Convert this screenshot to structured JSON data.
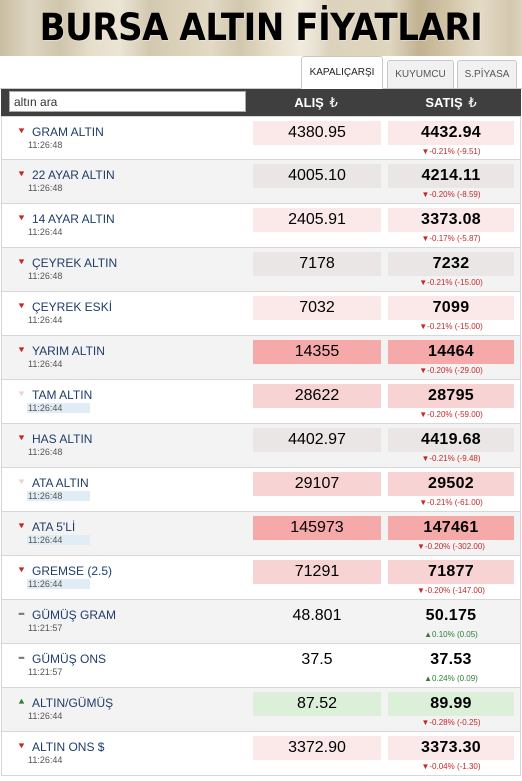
{
  "header": {
    "title": "BURSA ALTIN FİYATLARI"
  },
  "tabs": [
    {
      "label": "KAPALIÇARŞI",
      "active": true
    },
    {
      "label": "KUYUMCU",
      "active": false
    },
    {
      "label": "S.PİYASA",
      "active": false
    }
  ],
  "search": {
    "placeholder": "altın ara"
  },
  "columns": {
    "alis": "ALIŞ",
    "satis": "SATIŞ",
    "currency_symbol": "₺"
  },
  "colors": {
    "down": "#c62828",
    "up": "#2e7d32",
    "neutral": "#777777",
    "name": "#1e3d6b"
  },
  "rows": [
    {
      "name": "GRAM ALTIN",
      "time": "11:26:48",
      "alis": "4380.95",
      "satis": "4432.94",
      "change": "▼-0.21% (-9.51)",
      "trend": "down",
      "bg_alis": "light",
      "bg_satis": "light",
      "time_hl": false
    },
    {
      "name": "22 AYAR ALTIN",
      "time": "11:26:48",
      "alis": "4005.10",
      "satis": "4214.11",
      "change": "▼-0.20% (-8.59)",
      "trend": "down",
      "bg_alis": "grey",
      "bg_satis": "grey",
      "time_hl": false
    },
    {
      "name": "14 AYAR ALTIN",
      "time": "11:26:44",
      "alis": "2405.91",
      "satis": "3373.08",
      "change": "▼-0.17% (-5.87)",
      "trend": "down",
      "bg_alis": "light",
      "bg_satis": "light",
      "time_hl": false
    },
    {
      "name": "ÇEYREK ALTIN",
      "time": "11:26:48",
      "alis": "7178",
      "satis": "7232",
      "change": "▼-0.21% (-15.00)",
      "trend": "down",
      "bg_alis": "grey",
      "bg_satis": "grey",
      "time_hl": false
    },
    {
      "name": "ÇEYREK ESKİ",
      "time": "11:26:44",
      "alis": "7032",
      "satis": "7099",
      "change": "▼-0.21% (-15.00)",
      "trend": "down",
      "bg_alis": "light",
      "bg_satis": "light",
      "time_hl": false
    },
    {
      "name": "YARIM ALTIN",
      "time": "11:26:44",
      "alis": "14355",
      "satis": "14464",
      "change": "▼-0.20% (-29.00)",
      "trend": "down",
      "bg_alis": "strong",
      "bg_satis": "strong",
      "time_hl": false
    },
    {
      "name": "TAM ALTIN",
      "time": "11:26:44",
      "alis": "28622",
      "satis": "28795",
      "change": "▼-0.20% (-59.00)",
      "trend": "down",
      "bg_alis": "mid",
      "bg_satis": "mid",
      "time_hl": true
    },
    {
      "name": "HAS ALTIN",
      "time": "11:26:48",
      "alis": "4402.97",
      "satis": "4419.68",
      "change": "▼-0.21% (-9.48)",
      "trend": "down",
      "bg_alis": "grey",
      "bg_satis": "grey",
      "time_hl": false
    },
    {
      "name": "ATA ALTIN",
      "time": "11:26:48",
      "alis": "29107",
      "satis": "29502",
      "change": "▼-0.21% (-61.00)",
      "trend": "down",
      "bg_alis": "mid",
      "bg_satis": "mid",
      "time_hl": true
    },
    {
      "name": "ATA 5'Lİ",
      "time": "11:26:44",
      "alis": "145973",
      "satis": "147461",
      "change": "▼-0.20% (-302.00)",
      "trend": "down",
      "bg_alis": "strong",
      "bg_satis": "strong",
      "time_hl": true
    },
    {
      "name": "GREMSE (2.5)",
      "time": "11:26:44",
      "alis": "71291",
      "satis": "71877",
      "change": "▼-0.20% (-147.00)",
      "trend": "down",
      "bg_alis": "mid",
      "bg_satis": "mid",
      "time_hl": true
    },
    {
      "name": "GÜMÜŞ GRAM",
      "time": "11:21:57",
      "alis": "48.801",
      "satis": "50.175",
      "change": "▲0.10% (0.05)",
      "trend": "up",
      "bg_alis": "plain",
      "bg_satis": "plain",
      "time_hl": false
    },
    {
      "name": "GÜMÜŞ ONS",
      "time": "11:21:57",
      "alis": "37.5",
      "satis": "37.53",
      "change": "▲0.24% (0.09)",
      "trend": "up",
      "bg_alis": "plain",
      "bg_satis": "plain",
      "time_hl": false
    },
    {
      "name": "ALTIN/GÜMÜŞ",
      "time": "11:26:44",
      "alis": "87.52",
      "satis": "89.99",
      "change": "▼-0.28% (-0.25)",
      "trend": "down",
      "bg_alis": "green",
      "bg_satis": "green",
      "time_hl": false
    },
    {
      "name": "ALTIN ONS $",
      "time": "11:26:44",
      "alis": "3372.90",
      "satis": "3373.30",
      "change": "▼-0.04% (-1.30)",
      "trend": "down",
      "bg_alis": "light",
      "bg_satis": "light",
      "time_hl": false
    }
  ]
}
